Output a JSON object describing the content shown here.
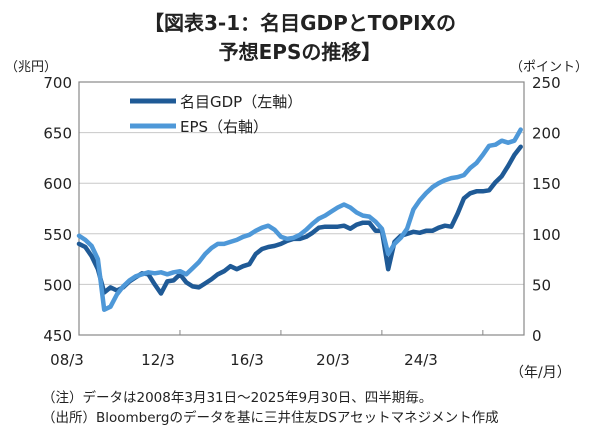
{
  "chart_data": {
    "type": "line",
    "title": "【図表3-1：名目GDPとTOPIXの\n予想EPSの推移】",
    "title_lines": [
      "【図表3-1：名目GDPとTOPIXの",
      "予想EPSの推移】"
    ],
    "y_left_unit": "（兆円）",
    "y_right_unit": "（ポイント）",
    "x_unit": "（年/月）",
    "ylim_left": [
      450,
      700
    ],
    "ylim_right": [
      0,
      250
    ],
    "y_left_ticks": [
      "700",
      "650",
      "600",
      "550",
      "500",
      "450"
    ],
    "y_right_ticks": [
      "250",
      "200",
      "150",
      "100",
      "50",
      "0"
    ],
    "x_tick_labels": [
      "08/3",
      "12/3",
      "16/3",
      "20/3",
      "24/3"
    ],
    "x_start": "2008/3",
    "x_end": "2025/9",
    "x_frequency": "quarterly",
    "grid": true,
    "legend_placement": "top-left",
    "series": [
      {
        "name": "名目GDP（左軸）",
        "axis": "left",
        "color": "#1f5a96",
        "values": [
          540,
          537,
          528,
          515,
          492,
          497,
          494,
          497,
          503,
          507,
          511,
          510,
          500,
          491,
          503,
          504,
          510,
          502,
          498,
          497,
          501,
          505,
          510,
          513,
          518,
          515,
          518,
          520,
          530,
          535,
          537,
          538,
          540,
          543,
          545,
          545,
          547,
          551,
          556,
          557,
          557,
          557,
          558,
          555,
          559,
          561,
          561,
          553,
          553,
          515,
          542,
          548,
          550,
          552,
          551,
          553,
          553,
          556,
          558,
          557,
          570,
          585,
          590,
          592,
          592,
          593,
          601,
          607,
          617,
          628,
          636
        ]
      },
      {
        "name": "EPS（右軸）",
        "axis": "right",
        "color": "#4e98d8",
        "values": [
          98,
          94,
          88,
          75,
          25,
          28,
          40,
          48,
          54,
          58,
          60,
          62,
          61,
          62,
          60,
          62,
          63,
          60,
          66,
          72,
          80,
          86,
          90,
          90,
          92,
          94,
          97,
          99,
          103,
          106,
          108,
          104,
          97,
          95,
          96,
          99,
          104,
          110,
          115,
          118,
          122,
          126,
          129,
          126,
          121,
          118,
          117,
          112,
          105,
          80,
          90,
          96,
          105,
          124,
          133,
          140,
          146,
          150,
          153,
          155,
          156,
          158,
          165,
          170,
          178,
          187,
          188,
          192,
          190,
          192,
          203
        ]
      }
    ]
  },
  "notes": [
    "（注）データは2008年3月31日～2025年9月30日、四半期毎。",
    "（出所）Bloombergのデータを基に三井住友DSアセットマネジメント作成"
  ]
}
